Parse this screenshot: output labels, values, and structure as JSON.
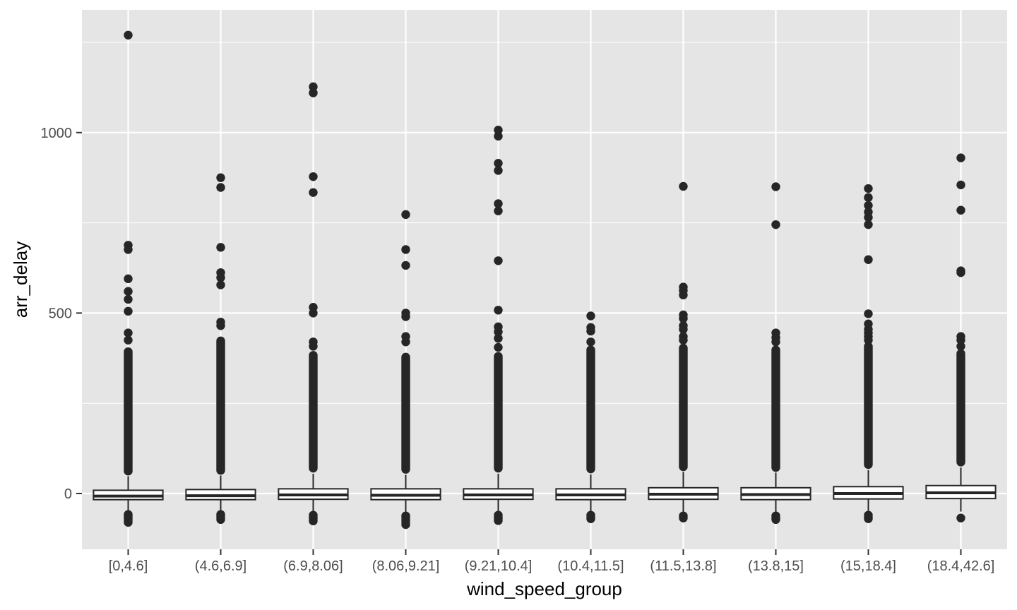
{
  "chart_data": {
    "type": "boxplot",
    "xlabel": "wind_speed_group",
    "ylabel": "arr_delay",
    "ylim": [
      -150,
      1280
    ],
    "yticks": [
      0,
      500,
      1000
    ],
    "grid": true,
    "legend": "none",
    "colors": {
      "panel": "#e5e5e5",
      "grid": "#ffffff",
      "box_fill": "#ffffff",
      "box_stroke": "#262626",
      "point": "#262626"
    },
    "categories": [
      "[0,4.6]",
      "(4.6,6.9]",
      "(6.9,8.06]",
      "(8.06,9.21]",
      "(9.21,10.4]",
      "(10.4,11.5]",
      "(11.5,13.8]",
      "(13.8,15]",
      "(15,18.4]",
      "(18.4,42.6]"
    ],
    "boxes": [
      {
        "category": "[0,4.6]",
        "lower_whisker": -55,
        "q1": -17,
        "median": -7,
        "q3": 9,
        "upper_whisker": 48,
        "outliers_low": [
          -58,
          -62,
          -66,
          -70,
          -75,
          -80
        ],
        "outliers_high": [
          1270,
          688,
          676,
          595,
          560,
          538,
          505,
          445,
          425
        ],
        "dense_band": [
          50,
          405
        ]
      },
      {
        "category": "(4.6,6.9]",
        "lower_whisker": -53,
        "q1": -17,
        "median": -6,
        "q3": 11,
        "upper_whisker": 50,
        "outliers_low": [
          -58,
          -62,
          -67,
          -72
        ],
        "outliers_high": [
          875,
          848,
          682,
          612,
          598,
          578,
          475,
          465
        ],
        "dense_band": [
          52,
          435
        ]
      },
      {
        "category": "(6.9,8.06]",
        "lower_whisker": -52,
        "q1": -16,
        "median": -4,
        "q3": 13,
        "upper_whisker": 55,
        "outliers_low": [
          -60,
          -65,
          -70,
          -76
        ],
        "outliers_high": [
          1127,
          1110,
          878,
          834,
          516,
          500,
          420,
          408
        ],
        "dense_band": [
          58,
          395
        ]
      },
      {
        "category": "(8.06,9.21]",
        "lower_whisker": -55,
        "q1": -17,
        "median": -5,
        "q3": 13,
        "upper_whisker": 52,
        "outliers_low": [
          -62,
          -68,
          -74,
          -80,
          -86
        ],
        "outliers_high": [
          773,
          676,
          632,
          500,
          490,
          435,
          420
        ],
        "dense_band": [
          55,
          390
        ]
      },
      {
        "category": "(9.21,10.4]",
        "lower_whisker": -52,
        "q1": -16,
        "median": -4,
        "q3": 13,
        "upper_whisker": 55,
        "outliers_low": [
          -60,
          -65,
          -70,
          -75
        ],
        "outliers_high": [
          1007,
          990,
          915,
          895,
          803,
          783,
          645,
          508,
          462,
          448,
          430,
          405
        ],
        "dense_band": [
          58,
          392
        ]
      },
      {
        "category": "(10.4,11.5]",
        "lower_whisker": -53,
        "q1": -17,
        "median": -4,
        "q3": 13,
        "upper_whisker": 53,
        "outliers_low": [
          -60,
          -65,
          -70
        ],
        "outliers_high": [
          492,
          460,
          450,
          420
        ],
        "dense_band": [
          56,
          410
        ]
      },
      {
        "category": "(11.5,13.8]",
        "lower_whisker": -55,
        "q1": -16,
        "median": -2,
        "q3": 16,
        "upper_whisker": 60,
        "outliers_low": [
          -62,
          -68
        ],
        "outliers_high": [
          851,
          572,
          562,
          550,
          495,
          485,
          465,
          455,
          435,
          425
        ],
        "dense_band": [
          62,
          415
        ]
      },
      {
        "category": "(13.8,15]",
        "lower_whisker": -55,
        "q1": -17,
        "median": -3,
        "q3": 16,
        "upper_whisker": 58,
        "outliers_low": [
          -62,
          -68,
          -72
        ],
        "outliers_high": [
          850,
          745,
          445,
          432,
          420
        ],
        "dense_band": [
          60,
          410
        ]
      },
      {
        "category": "(15,18.4]",
        "lower_whisker": -52,
        "q1": -15,
        "median": 0,
        "q3": 19,
        "upper_whisker": 65,
        "outliers_low": [
          -60,
          -66,
          -70
        ],
        "outliers_high": [
          845,
          820,
          798,
          780,
          765,
          745,
          648,
          498,
          470,
          455,
          445,
          435,
          425
        ],
        "dense_band": [
          68,
          420
        ]
      },
      {
        "category": "(18.4,42.6]",
        "lower_whisker": -50,
        "q1": -14,
        "median": 2,
        "q3": 22,
        "upper_whisker": 72,
        "outliers_low": [
          -68
        ],
        "outliers_high": [
          930,
          855,
          785,
          617,
          612,
          435,
          425,
          408
        ],
        "dense_band": [
          75,
          400
        ]
      }
    ]
  }
}
